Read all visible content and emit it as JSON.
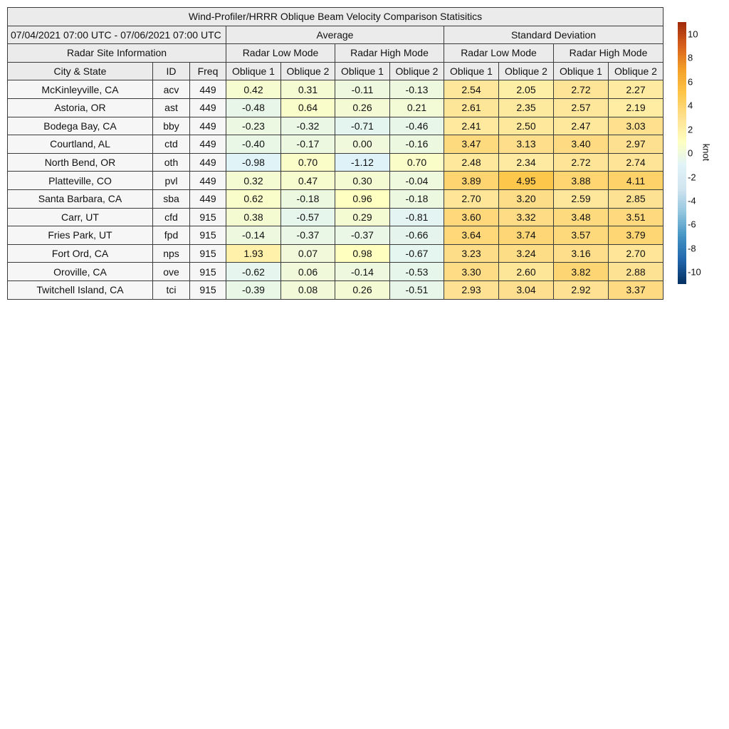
{
  "chart_data": {
    "type": "table",
    "title": "Wind-Profiler/HRRR Oblique Beam Velocity Comparison Statisitics",
    "date_range": "07/04/2021 07:00 UTC - 07/06/2021 07:00 UTC",
    "group_headers": {
      "average": "Average",
      "std": "Standard Deviation"
    },
    "site_info_header": "Radar Site Information",
    "mode_headers": [
      "Radar Low Mode",
      "Radar High Mode",
      "Radar Low Mode",
      "Radar High Mode"
    ],
    "col_headers": [
      "City & State",
      "ID",
      "Freq",
      "Oblique 1",
      "Oblique 2",
      "Oblique 1",
      "Oblique 2",
      "Oblique 1",
      "Oblique 2",
      "Oblique 1",
      "Oblique 2"
    ],
    "rows": [
      {
        "city": "McKinleyville, CA",
        "id": "acv",
        "freq": "449",
        "values": [
          "0.42",
          "0.31",
          "-0.11",
          "-0.13",
          "2.54",
          "2.05",
          "2.72",
          "2.27"
        ]
      },
      {
        "city": "Astoria, OR",
        "id": "ast",
        "freq": "449",
        "values": [
          "-0.48",
          "0.64",
          "0.26",
          "0.21",
          "2.61",
          "2.35",
          "2.57",
          "2.19"
        ]
      },
      {
        "city": "Bodega Bay, CA",
        "id": "bby",
        "freq": "449",
        "values": [
          "-0.23",
          "-0.32",
          "-0.71",
          "-0.46",
          "2.41",
          "2.50",
          "2.47",
          "3.03"
        ]
      },
      {
        "city": "Courtland, AL",
        "id": "ctd",
        "freq": "449",
        "values": [
          "-0.40",
          "-0.17",
          "0.00",
          "-0.16",
          "3.47",
          "3.13",
          "3.40",
          "2.97"
        ]
      },
      {
        "city": "North Bend, OR",
        "id": "oth",
        "freq": "449",
        "values": [
          "-0.98",
          "0.70",
          "-1.12",
          "0.70",
          "2.48",
          "2.34",
          "2.72",
          "2.74"
        ]
      },
      {
        "city": "Platteville, CO",
        "id": "pvl",
        "freq": "449",
        "values": [
          "0.32",
          "0.47",
          "0.30",
          "-0.04",
          "3.89",
          "4.95",
          "3.88",
          "4.11"
        ]
      },
      {
        "city": "Santa Barbara, CA",
        "id": "sba",
        "freq": "449",
        "values": [
          "0.62",
          "-0.18",
          "0.96",
          "-0.18",
          "2.70",
          "3.20",
          "2.59",
          "2.85"
        ]
      },
      {
        "city": "Carr, UT",
        "id": "cfd",
        "freq": "915",
        "values": [
          "0.38",
          "-0.57",
          "0.29",
          "-0.81",
          "3.60",
          "3.32",
          "3.48",
          "3.51"
        ]
      },
      {
        "city": "Fries Park, UT",
        "id": "fpd",
        "freq": "915",
        "values": [
          "-0.14",
          "-0.37",
          "-0.37",
          "-0.66",
          "3.64",
          "3.74",
          "3.57",
          "3.79"
        ]
      },
      {
        "city": "Fort Ord, CA",
        "id": "nps",
        "freq": "915",
        "values": [
          "1.93",
          "0.07",
          "0.98",
          "-0.67",
          "3.23",
          "3.24",
          "3.16",
          "2.70"
        ]
      },
      {
        "city": "Oroville, CA",
        "id": "ove",
        "freq": "915",
        "values": [
          "-0.62",
          "0.06",
          "-0.14",
          "-0.53",
          "3.30",
          "2.60",
          "3.82",
          "2.88"
        ]
      },
      {
        "city": "Twitchell Island, CA",
        "id": "tci",
        "freq": "915",
        "values": [
          "-0.39",
          "0.08",
          "0.26",
          "-0.51",
          "2.93",
          "3.04",
          "2.92",
          "3.37"
        ]
      }
    ],
    "colorbar": {
      "label": "knot",
      "range": [
        -11,
        11
      ],
      "ticks": [
        "10",
        "8",
        "6",
        "4",
        "2",
        "0",
        "-2",
        "-4",
        "-6",
        "-8",
        "-10"
      ],
      "colors": [
        "#053061",
        "#2166ac",
        "#4393c3",
        "#92c5de",
        "#d1e5f0",
        "#e0f3f8",
        "#ffffbf",
        "#fee090",
        "#fdc649",
        "#f4a028",
        "#d8601c",
        "#9e2a0c"
      ]
    }
  }
}
